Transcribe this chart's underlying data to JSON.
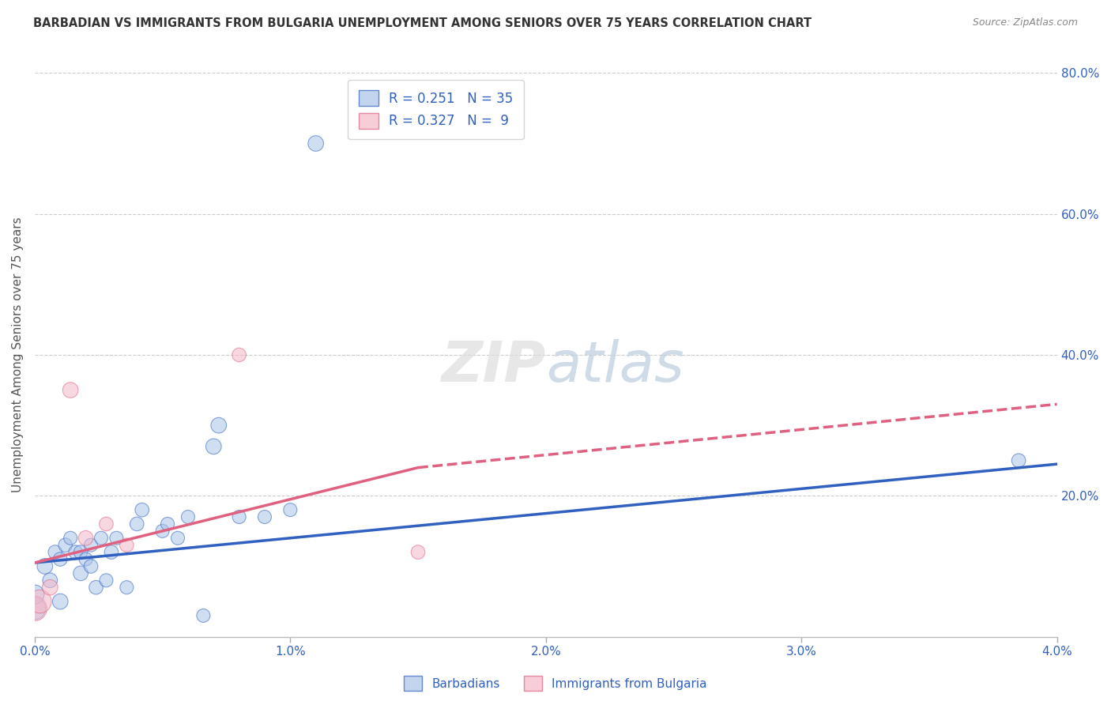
{
  "title": "BARBADIAN VS IMMIGRANTS FROM BULGARIA UNEMPLOYMENT AMONG SENIORS OVER 75 YEARS CORRELATION CHART",
  "source": "Source: ZipAtlas.com",
  "ylabel": "Unemployment Among Seniors over 75 years",
  "x_tick_labels": [
    "0.0%",
    "1.0%",
    "2.0%",
    "3.0%",
    "4.0%"
  ],
  "x_tick_values": [
    0.0,
    1.0,
    2.0,
    3.0,
    4.0
  ],
  "y_tick_labels_right": [
    "80.0%",
    "60.0%",
    "40.0%",
    "20.0%"
  ],
  "y_tick_values_right": [
    80.0,
    60.0,
    40.0,
    20.0
  ],
  "xlim": [
    0.0,
    4.0
  ],
  "ylim": [
    0.0,
    80.0
  ],
  "legend_R1": "R = 0.251",
  "legend_N1": "N = 35",
  "legend_R2": "R = 0.327",
  "legend_N2": "N =  9",
  "blue_color": "#aac4e8",
  "pink_color": "#f4b8c8",
  "blue_line_color": "#3060c0",
  "pink_line_color": "#e06080",
  "barbadians_x": [
    0.0,
    0.0,
    0.04,
    0.06,
    0.08,
    0.1,
    0.1,
    0.12,
    0.14,
    0.16,
    0.18,
    0.18,
    0.2,
    0.22,
    0.22,
    0.24,
    0.26,
    0.28,
    0.3,
    0.32,
    0.36,
    0.4,
    0.42,
    0.5,
    0.52,
    0.56,
    0.6,
    0.66,
    0.7,
    0.72,
    0.8,
    0.9,
    1.0,
    1.1,
    3.85
  ],
  "barbadians_y": [
    4.0,
    6.0,
    10.0,
    8.0,
    12.0,
    5.0,
    11.0,
    13.0,
    14.0,
    12.0,
    9.0,
    12.0,
    11.0,
    10.0,
    13.0,
    7.0,
    14.0,
    8.0,
    12.0,
    14.0,
    7.0,
    16.0,
    18.0,
    15.0,
    16.0,
    14.0,
    17.0,
    3.0,
    27.0,
    30.0,
    17.0,
    17.0,
    18.0,
    70.0,
    25.0
  ],
  "barbadians_size": [
    400,
    300,
    200,
    180,
    160,
    200,
    160,
    160,
    150,
    160,
    180,
    160,
    150,
    160,
    150,
    160,
    150,
    150,
    160,
    150,
    150,
    160,
    160,
    150,
    150,
    150,
    150,
    150,
    200,
    200,
    150,
    150,
    150,
    200,
    160
  ],
  "bulgaria_x": [
    0.0,
    0.02,
    0.06,
    0.14,
    0.2,
    0.28,
    0.36,
    0.8,
    1.5
  ],
  "bulgaria_y": [
    4.0,
    5.0,
    7.0,
    35.0,
    14.0,
    16.0,
    13.0,
    40.0,
    12.0
  ],
  "bulgaria_size": [
    500,
    450,
    200,
    200,
    180,
    160,
    160,
    160,
    160
  ],
  "blue_trendline_x0": 0.0,
  "blue_trendline_y0": 10.5,
  "blue_trendline_x1": 4.0,
  "blue_trendline_y1": 24.5,
  "pink_solid_x0": 0.0,
  "pink_solid_y0": 10.5,
  "pink_solid_x1": 1.5,
  "pink_solid_y1": 24.0,
  "pink_dash_x0": 1.5,
  "pink_dash_y0": 24.0,
  "pink_dash_x1": 4.0,
  "pink_dash_y1": 33.0
}
